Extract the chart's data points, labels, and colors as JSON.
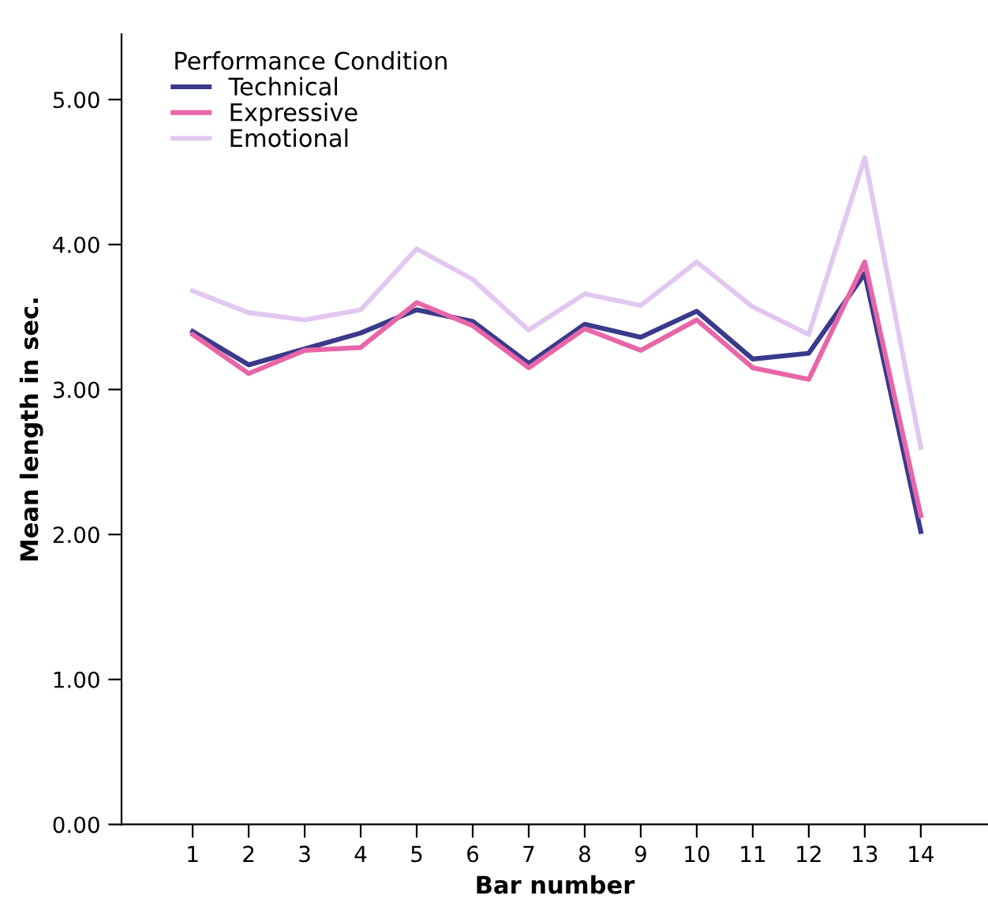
{
  "chart_data": {
    "type": "line",
    "xlabel": "Bar number",
    "ylabel": "Mean length in sec.",
    "legend_title": "Performance Condition",
    "categories": [
      "1",
      "2",
      "3",
      "4",
      "5",
      "6",
      "7",
      "8",
      "9",
      "10",
      "11",
      "12",
      "13",
      "14"
    ],
    "series": [
      {
        "name": "Technical",
        "color": "#3a3a8c",
        "values": [
          3.4,
          3.17,
          3.28,
          3.39,
          3.55,
          3.47,
          3.18,
          3.45,
          3.36,
          3.54,
          3.21,
          3.25,
          3.8,
          2.02
        ]
      },
      {
        "name": "Expressive",
        "color": "#e866a8",
        "values": [
          3.38,
          3.11,
          3.27,
          3.29,
          3.6,
          3.44,
          3.15,
          3.42,
          3.27,
          3.48,
          3.15,
          3.07,
          3.88,
          2.13
        ]
      },
      {
        "name": "Emotional",
        "color": "#e2c8f0",
        "values": [
          3.68,
          3.53,
          3.48,
          3.55,
          3.97,
          3.76,
          3.41,
          3.66,
          3.58,
          3.88,
          3.57,
          3.38,
          4.6,
          2.6
        ]
      }
    ],
    "ylim": [
      0,
      5.45
    ],
    "yticks": [
      {
        "value": 0,
        "label": "0.00"
      },
      {
        "value": 1,
        "label": "1.00"
      },
      {
        "value": 2,
        "label": "2.00"
      },
      {
        "value": 3,
        "label": "3.00"
      },
      {
        "value": 4,
        "label": "4.00"
      },
      {
        "value": 5,
        "label": "5.00"
      }
    ],
    "grid": false,
    "legend": "top left",
    "marker": "none",
    "line_style": "solid"
  }
}
